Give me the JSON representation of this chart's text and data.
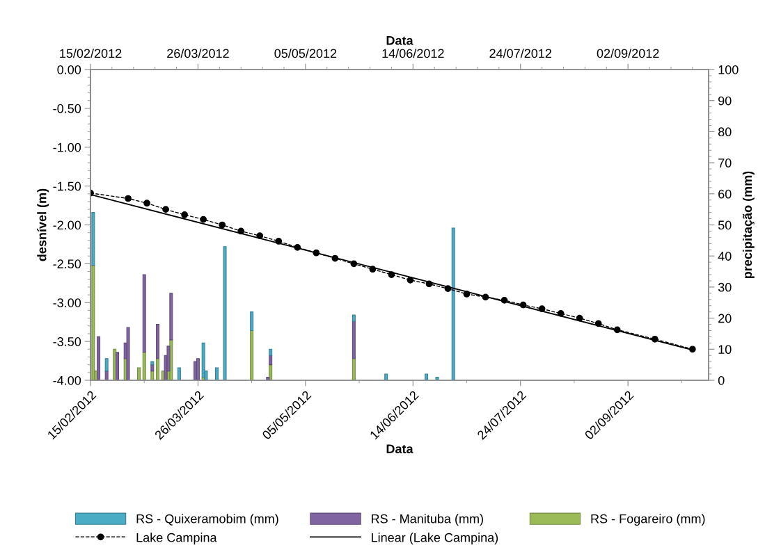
{
  "chart_data": {
    "type": "bar",
    "stacked": true,
    "xlabel": "Data",
    "x2label": "Data",
    "ylabel": "desnível (m)",
    "y2label": "precipitação (mm)",
    "x": [
      "2012-02-16",
      "2012-02-17",
      "2012-02-18",
      "2012-02-21",
      "2012-02-24",
      "2012-02-25",
      "2012-02-28",
      "2012-02-29",
      "2012-03-04",
      "2012-03-06",
      "2012-03-09",
      "2012-03-11",
      "2012-03-13",
      "2012-03-14",
      "2012-03-15",
      "2012-03-16",
      "2012-03-19",
      "2012-03-25",
      "2012-03-26",
      "2012-03-28",
      "2012-03-29",
      "2012-04-02",
      "2012-04-05",
      "2012-04-15",
      "2012-04-21",
      "2012-04-22",
      "2012-05-23",
      "2012-06-04",
      "2012-06-19",
      "2012-06-23",
      "2012-06-29"
    ],
    "xlim": [
      "2012-02-15",
      "2012-10-02"
    ],
    "xticks": [
      {
        "value": "2012-02-15",
        "label": "15/02/2012"
      },
      {
        "value": "2012-03-26",
        "label": "26/03/2012"
      },
      {
        "value": "2012-05-05",
        "label": "05/05/2012"
      },
      {
        "value": "2012-06-14",
        "label": "14/06/2012"
      },
      {
        "value": "2012-07-24",
        "label": "24/07/2012"
      },
      {
        "value": "2012-09-02",
        "label": "02/09/2012"
      }
    ],
    "x2lim": [
      "2012-02-15",
      "2012-10-02"
    ],
    "x2ticks": [
      {
        "value": "2012-02-15",
        "label": "15/02/2012"
      },
      {
        "value": "2012-03-26",
        "label": "26/03/2012"
      },
      {
        "value": "2012-05-05",
        "label": "05/05/2012"
      },
      {
        "value": "2012-06-14",
        "label": "14/06/2012"
      },
      {
        "value": "2012-07-24",
        "label": "24/07/2012"
      },
      {
        "value": "2012-09-02",
        "label": "02/09/2012"
      }
    ],
    "ylim": [
      -4,
      0
    ],
    "yticks": [
      {
        "value": -4,
        "label": "-4.00"
      },
      {
        "value": -3.5,
        "label": "-3.50"
      },
      {
        "value": -3,
        "label": "-3.00"
      },
      {
        "value": -2.5,
        "label": "-2.50"
      },
      {
        "value": -2,
        "label": "-2.00"
      },
      {
        "value": -1.5,
        "label": "-1.50"
      },
      {
        "value": -1,
        "label": "-1.00"
      },
      {
        "value": -0.5,
        "label": "-0.50"
      },
      {
        "value": 0,
        "label": "0.00"
      }
    ],
    "y2lim": [
      0,
      100
    ],
    "y2ticks": [
      0,
      10,
      20,
      30,
      40,
      50,
      60,
      70,
      80,
      90,
      100
    ],
    "grid": false,
    "legend": "bottom",
    "series": [
      {
        "name": "RS - Fogareiro (mm)",
        "axis": "y2",
        "color": "#9bbb59",
        "values": [
          37,
          3,
          null,
          null,
          10,
          null,
          7,
          null,
          4,
          9,
          3,
          7,
          3,
          null,
          3,
          13,
          null,
          null,
          null,
          1,
          null,
          null,
          null,
          16,
          null,
          5,
          7,
          null,
          null,
          null,
          null
        ]
      },
      {
        "name": "RS - Manituba (mm)",
        "axis": "y2",
        "color": "#8064a2",
        "values": [
          null,
          null,
          14,
          3,
          null,
          9,
          5,
          17,
          null,
          25,
          2,
          11,
          null,
          8,
          8,
          15,
          null,
          6,
          7,
          null,
          null,
          null,
          null,
          null,
          1,
          3,
          12,
          null,
          null,
          null,
          null
        ]
      },
      {
        "name": "RS - Quixeramobim (mm)",
        "axis": "y2",
        "color": "#4bacc6",
        "values": [
          17,
          null,
          null,
          4,
          null,
          null,
          null,
          null,
          null,
          null,
          1,
          null,
          null,
          null,
          null,
          null,
          4,
          null,
          null,
          11,
          3,
          4,
          43,
          6,
          null,
          2,
          2,
          2,
          2,
          1,
          49
        ]
      },
      {
        "name": "Lake Campina",
        "type": "line",
        "axis": "y",
        "color": "#000000",
        "marker": "circle",
        "line_style": "dashed",
        "x": [
          "2012-02-15",
          "2012-02-29",
          "2012-03-07",
          "2012-03-14",
          "2012-03-21",
          "2012-03-28",
          "2012-04-04",
          "2012-04-11",
          "2012-04-18",
          "2012-04-25",
          "2012-05-02",
          "2012-05-09",
          "2012-05-16",
          "2012-05-23",
          "2012-05-30",
          "2012-06-06",
          "2012-06-13",
          "2012-06-20",
          "2012-06-27",
          "2012-07-04",
          "2012-07-11",
          "2012-07-18",
          "2012-07-25",
          "2012-08-01",
          "2012-08-08",
          "2012-08-15",
          "2012-08-22",
          "2012-08-29",
          "2012-09-12",
          "2012-09-26"
        ],
        "values": [
          -1.59,
          -1.66,
          -1.72,
          -1.8,
          -1.87,
          -1.93,
          -2.0,
          -2.08,
          -2.14,
          -2.21,
          -2.29,
          -2.36,
          -2.43,
          -2.5,
          -2.57,
          -2.64,
          -2.71,
          -2.76,
          -2.82,
          -2.89,
          -2.93,
          -2.97,
          -3.03,
          -3.08,
          -3.14,
          -3.2,
          -3.27,
          -3.35,
          -3.47,
          -3.6
        ]
      },
      {
        "name": "Linear (Lake Campina)",
        "type": "line",
        "axis": "y",
        "color": "#000000",
        "marker": "none",
        "line_style": "solid",
        "x": [
          "2012-02-15",
          "2012-09-26"
        ],
        "values": [
          -1.61,
          -3.61
        ]
      }
    ]
  }
}
